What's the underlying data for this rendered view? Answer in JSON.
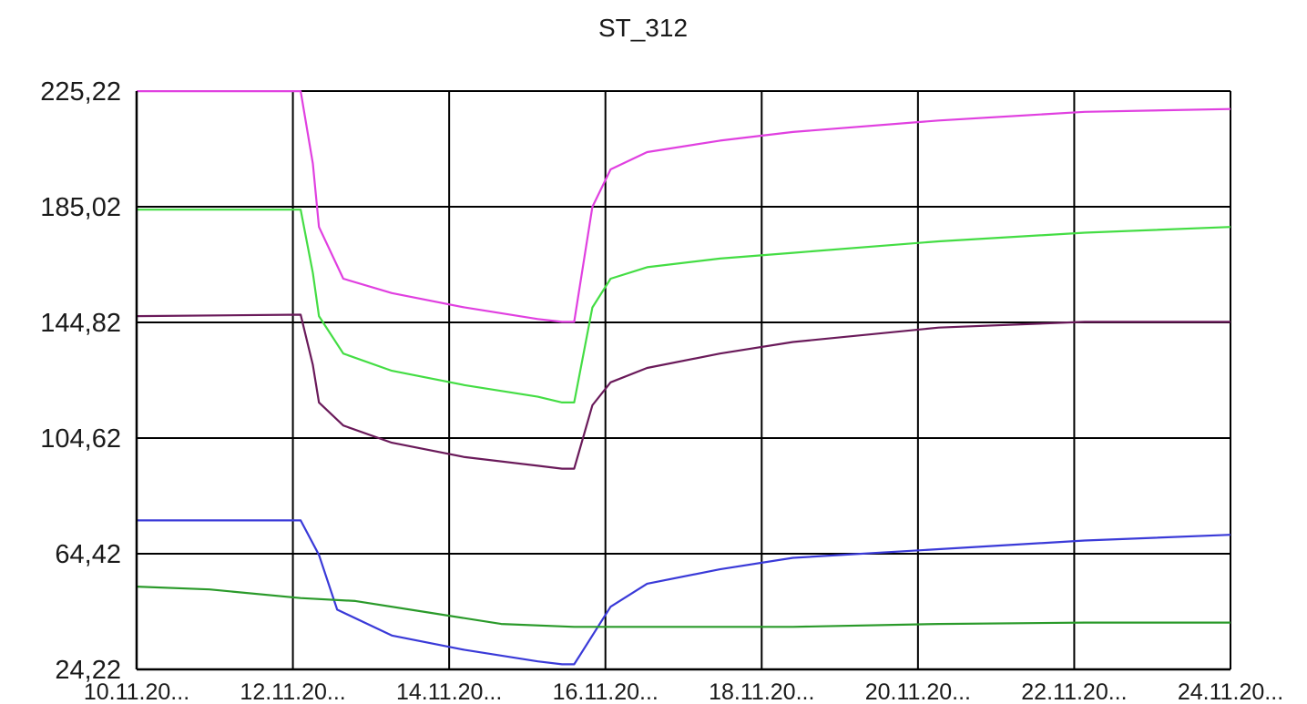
{
  "chart_data": {
    "type": "line",
    "title": "ST_312",
    "xlabel": "",
    "ylabel": "",
    "ylim": [
      24.22,
      225.22
    ],
    "y_ticks": [
      "225,22",
      "185,02",
      "144,82",
      "104,62",
      "64,42",
      "24,22"
    ],
    "x_ticks": [
      "10.11.20...",
      "12.11.20...",
      "14.11.20...",
      "16.11.20...",
      "18.11.20...",
      "20.11.20...",
      "22.11.20...",
      "24.11.20..."
    ],
    "xlim": [
      "2020-11-09T00:00",
      "2020-11-24T00:00"
    ],
    "grid": true,
    "legend": "none",
    "series": [
      {
        "color": "#e040e0",
        "x": [
          "2020-11-09T00:00",
          "2020-11-11T06:00",
          "2020-11-11T10:00",
          "2020-11-11T12:00",
          "2020-11-11T20:00",
          "2020-11-12T12:00",
          "2020-11-13T12:00",
          "2020-11-14T12:00",
          "2020-11-14T20:00",
          "2020-11-15T00:00",
          "2020-11-15T06:00",
          "2020-11-15T12:00",
          "2020-11-16T00:00",
          "2020-11-17T00:00",
          "2020-11-18T00:00",
          "2020-11-20T00:00",
          "2020-11-22T00:00",
          "2020-11-24T00:00"
        ],
        "y": [
          225.2,
          225.2,
          200,
          178,
          160,
          155,
          150,
          146,
          145,
          145,
          185,
          198,
          204,
          208,
          211,
          215,
          218,
          219
        ]
      },
      {
        "color": "#44dd44",
        "x": [
          "2020-11-09T00:00",
          "2020-11-11T06:00",
          "2020-11-11T10:00",
          "2020-11-11T12:00",
          "2020-11-11T20:00",
          "2020-11-12T12:00",
          "2020-11-13T12:00",
          "2020-11-14T12:00",
          "2020-11-14T20:00",
          "2020-11-15T00:00",
          "2020-11-15T06:00",
          "2020-11-15T12:00",
          "2020-11-16T00:00",
          "2020-11-17T00:00",
          "2020-11-18T00:00",
          "2020-11-20T00:00",
          "2020-11-22T00:00",
          "2020-11-24T00:00"
        ],
        "y": [
          184,
          184,
          162,
          147,
          134,
          128,
          123,
          119,
          117,
          117,
          150,
          160,
          164,
          167,
          169,
          173,
          176,
          178
        ]
      },
      {
        "color": "#6a1a5a",
        "x": [
          "2020-11-09T00:00",
          "2020-11-11T06:00",
          "2020-11-11T10:00",
          "2020-11-11T12:00",
          "2020-11-11T20:00",
          "2020-11-12T12:00",
          "2020-11-13T12:00",
          "2020-11-14T12:00",
          "2020-11-14T20:00",
          "2020-11-15T00:00",
          "2020-11-15T06:00",
          "2020-11-15T12:00",
          "2020-11-16T00:00",
          "2020-11-17T00:00",
          "2020-11-18T00:00",
          "2020-11-20T00:00",
          "2020-11-22T00:00",
          "2020-11-24T00:00"
        ],
        "y": [
          147,
          147.5,
          130,
          117,
          109,
          103,
          98,
          95,
          94,
          94,
          116,
          124,
          129,
          134,
          138,
          143,
          145,
          145
        ]
      },
      {
        "color": "#3a3ad8",
        "x": [
          "2020-11-09T00:00",
          "2020-11-11T06:00",
          "2020-11-11T12:00",
          "2020-11-11T18:00",
          "2020-11-12T12:00",
          "2020-11-13T12:00",
          "2020-11-14T12:00",
          "2020-11-14T20:00",
          "2020-11-15T00:00",
          "2020-11-15T12:00",
          "2020-11-16T00:00",
          "2020-11-17T00:00",
          "2020-11-18T00:00",
          "2020-11-20T00:00",
          "2020-11-22T00:00",
          "2020-11-24T00:00"
        ],
        "y": [
          76,
          76,
          64,
          45,
          36,
          31,
          27,
          26,
          26,
          46,
          54,
          59,
          63,
          66,
          69,
          71
        ]
      },
      {
        "color": "#2a9a2a",
        "x": [
          "2020-11-09T00:00",
          "2020-11-10T00:00",
          "2020-11-11T06:00",
          "2020-11-12T00:00",
          "2020-11-13T00:00",
          "2020-11-14T00:00",
          "2020-11-15T00:00",
          "2020-11-16T00:00",
          "2020-11-18T00:00",
          "2020-11-20T00:00",
          "2020-11-22T00:00",
          "2020-11-24T00:00"
        ],
        "y": [
          53,
          52,
          49,
          48,
          44,
          40,
          39,
          39,
          39,
          40,
          40.5,
          40.5
        ]
      }
    ]
  }
}
